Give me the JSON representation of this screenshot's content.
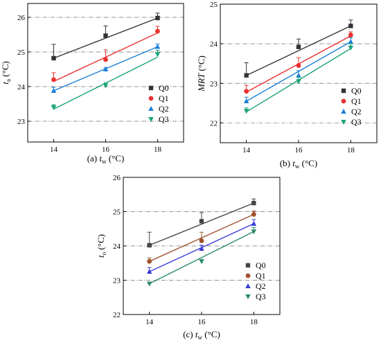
{
  "chart_data": [
    {
      "type": "scatter",
      "panel_label": "(a)",
      "xlabel": "t",
      "xlabel_sub": "w",
      "xlabel_unit": "(°C)",
      "ylabel": "t",
      "ylabel_sub": "a",
      "ylabel_unit": "(°C)",
      "xlim": [
        13,
        19
      ],
      "ylim": [
        22.4,
        26.4
      ],
      "xticks": [
        14,
        16,
        18
      ],
      "yticks": [
        23,
        24,
        25,
        26
      ],
      "grid": "dash-dot horizontal",
      "legend_position": "bottom-right",
      "series": [
        {
          "name": "Q0",
          "color": "#333333",
          "marker": "square",
          "x": [
            14,
            16,
            18
          ],
          "y": [
            24.82,
            25.47,
            25.98
          ],
          "yerr_up": [
            0.4,
            0.28,
            0.14
          ],
          "fit": [
            24.82,
            25.98
          ]
        },
        {
          "name": "Q1",
          "color": "#e8312e",
          "marker": "circle",
          "x": [
            14,
            16,
            18
          ],
          "y": [
            24.2,
            24.78,
            25.6
          ],
          "yerr_up": [
            0.2,
            0.28,
            0.14
          ],
          "fit": [
            24.15,
            25.55
          ]
        },
        {
          "name": "Q2",
          "color": "#1a7fd8",
          "marker": "triangle-up",
          "x": [
            14,
            16,
            18
          ],
          "y": [
            23.88,
            24.5,
            25.15
          ],
          "yerr_up": [
            0.1,
            0.05,
            0.08
          ],
          "fit": [
            23.88,
            25.15
          ]
        },
        {
          "name": "Q3",
          "color": "#1aa37a",
          "marker": "triangle-down",
          "x": [
            14,
            16,
            18
          ],
          "y": [
            23.4,
            24.03,
            24.93
          ],
          "yerr_up": [
            0.08,
            0.08,
            0.12
          ],
          "fit": [
            23.35,
            24.85
          ]
        }
      ]
    },
    {
      "type": "scatter",
      "panel_label": "(b)",
      "xlabel": "t",
      "xlabel_sub": "w",
      "xlabel_unit": "(°C)",
      "ylabel": "MRT",
      "ylabel_sub": "",
      "ylabel_unit": "(°C)",
      "xlim": [
        13,
        19
      ],
      "ylim": [
        21.5,
        25.0
      ],
      "xticks": [
        14,
        16,
        18
      ],
      "yticks": [
        22,
        23,
        24,
        25
      ],
      "grid": "dash-dot horizontal",
      "legend_position": "bottom-right",
      "series": [
        {
          "name": "Q0",
          "color": "#333333",
          "marker": "square",
          "x": [
            14,
            16,
            18
          ],
          "y": [
            23.2,
            23.92,
            24.45
          ],
          "yerr_up": [
            0.32,
            0.2,
            0.15
          ],
          "fit": [
            23.2,
            24.45
          ]
        },
        {
          "name": "Q1",
          "color": "#e8312e",
          "marker": "circle",
          "x": [
            14,
            16,
            18
          ],
          "y": [
            22.8,
            23.45,
            24.22
          ],
          "yerr_up": [
            0.15,
            0.2,
            0.08
          ],
          "fit": [
            22.78,
            24.2
          ]
        },
        {
          "name": "Q2",
          "color": "#1a7fd8",
          "marker": "triangle-up",
          "x": [
            14,
            16,
            18
          ],
          "y": [
            22.55,
            23.2,
            24.05
          ],
          "yerr_up": [
            0.1,
            0.12,
            0.1
          ],
          "fit": [
            22.55,
            24.05
          ]
        },
        {
          "name": "Q3",
          "color": "#1aa37a",
          "marker": "triangle-down",
          "x": [
            14,
            16,
            18
          ],
          "y": [
            22.3,
            23.05,
            23.9
          ],
          "yerr_up": [
            0.08,
            0.1,
            0.1
          ],
          "fit": [
            22.28,
            23.88
          ]
        }
      ]
    },
    {
      "type": "scatter",
      "panel_label": "(c)",
      "xlabel": "t",
      "xlabel_sub": "w",
      "xlabel_unit": "(°C)",
      "ylabel": "t",
      "ylabel_sub": "o",
      "ylabel_unit": "(°C)",
      "xlim": [
        13,
        19
      ],
      "ylim": [
        22,
        26
      ],
      "xticks": [
        14,
        16,
        18
      ],
      "yticks": [
        22,
        23,
        24,
        25,
        26
      ],
      "grid": "dash-dot horizontal",
      "legend_position": "bottom-right",
      "series": [
        {
          "name": "Q0",
          "color": "#444444",
          "marker": "square",
          "x": [
            14,
            16,
            18
          ],
          "y": [
            24.02,
            24.72,
            25.25
          ],
          "yerr_up": [
            0.38,
            0.25,
            0.12
          ],
          "fit": [
            24.02,
            25.25
          ]
        },
        {
          "name": "Q1",
          "color": "#a0522d",
          "marker": "circle",
          "x": [
            14,
            16,
            18
          ],
          "y": [
            23.55,
            24.15,
            24.92
          ],
          "yerr_up": [
            0.1,
            0.25,
            0.1
          ],
          "fit": [
            23.55,
            24.92
          ]
        },
        {
          "name": "Q2",
          "color": "#3a3ad8",
          "marker": "triangle-up",
          "x": [
            14,
            16,
            18
          ],
          "y": [
            23.25,
            23.92,
            24.65
          ],
          "yerr_up": [
            0.12,
            0.1,
            0.12
          ],
          "fit": [
            23.25,
            24.65
          ]
        },
        {
          "name": "Q3",
          "color": "#2a8a6a",
          "marker": "triangle-down",
          "x": [
            14,
            16,
            18
          ],
          "y": [
            22.9,
            23.55,
            24.42
          ],
          "yerr_up": [
            0.05,
            0.05,
            0.12
          ],
          "fit": [
            22.9,
            24.42
          ]
        }
      ]
    }
  ]
}
